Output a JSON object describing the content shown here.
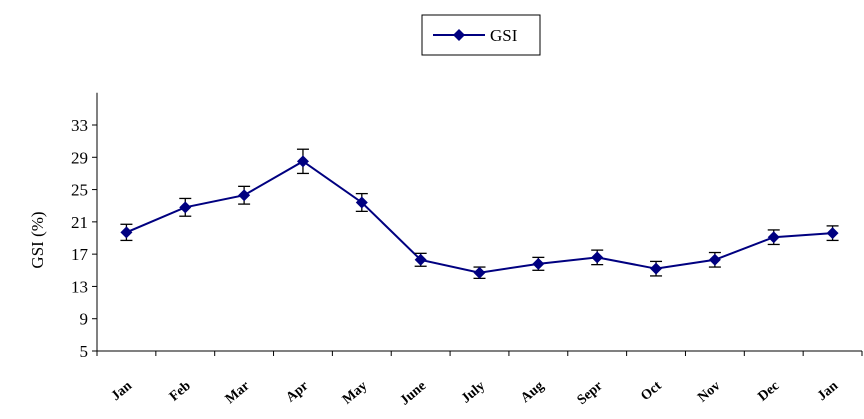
{
  "chart_data": {
    "type": "line",
    "categories": [
      "Jan",
      "Feb",
      "Mar",
      "Apr",
      "May",
      "June",
      "July",
      "Aug",
      "Sepr",
      "Oct",
      "Nov",
      "Dec",
      "Jan"
    ],
    "series": [
      {
        "name": "GSI",
        "values": [
          19.7,
          22.8,
          24.3,
          28.5,
          23.4,
          16.3,
          14.7,
          15.8,
          16.6,
          15.2,
          16.3,
          19.1,
          19.6
        ],
        "error": [
          1.0,
          1.1,
          1.1,
          1.5,
          1.1,
          0.8,
          0.7,
          0.8,
          0.9,
          0.9,
          0.9,
          0.9,
          0.9
        ],
        "color": "#000080"
      }
    ],
    "ylabel": "GSI (%)",
    "xlabel": "",
    "ylim": [
      5,
      37
    ],
    "yticks": [
      5,
      9,
      13,
      17,
      21,
      25,
      29,
      33
    ],
    "grid": false,
    "legend": "top-center"
  }
}
